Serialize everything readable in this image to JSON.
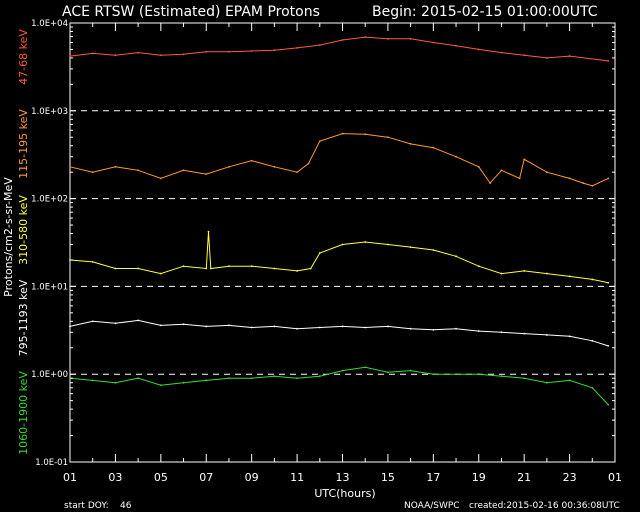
{
  "chart_data": {
    "type": "line",
    "title": "ACE RTSW (Estimated) EPAM Protons",
    "begin": "Begin: 2015-02-15 01:00:00UTC",
    "ylabel": "Protons/cm2-s-sr-MeV",
    "xlabel": "UTC(hours)",
    "yscale": "log",
    "ylim": [
      0.1,
      10000
    ],
    "xlim": [
      1,
      25
    ],
    "ytick_labels": [
      "1.0E-01",
      "1.0E+00",
      "1.0E+01",
      "1.0E+02",
      "1.0E+03",
      "1.0E+04"
    ],
    "xtick_labels": [
      "01",
      "03",
      "05",
      "07",
      "09",
      "11",
      "13",
      "15",
      "17",
      "19",
      "21",
      "23",
      "01"
    ],
    "reference_lines": [
      1,
      10,
      100,
      1000
    ],
    "series": [
      {
        "name": "47-68 keV",
        "color": "#ff5a3c",
        "x": [
          1,
          2,
          3,
          4,
          5,
          6,
          7,
          8,
          9,
          10,
          11,
          12,
          13,
          14,
          15,
          16,
          17,
          18,
          19,
          20,
          21,
          22,
          23,
          24.7
        ],
        "y": [
          4200,
          4500,
          4300,
          4600,
          4300,
          4400,
          4700,
          4700,
          4800,
          4900,
          5200,
          5600,
          6400,
          6900,
          6600,
          6600,
          6000,
          5500,
          5000,
          4600,
          4300,
          4000,
          4200,
          3700
        ]
      },
      {
        "name": "115-195 keV",
        "color": "#ff9a2e",
        "x": [
          1,
          2,
          3,
          4,
          5,
          6,
          7,
          8,
          9,
          10,
          11,
          11.5,
          12,
          13,
          14,
          15,
          16,
          17,
          18,
          19,
          19.5,
          20,
          20.8,
          21,
          22,
          23,
          23.6,
          24,
          24.7
        ],
        "y": [
          230,
          200,
          230,
          210,
          170,
          210,
          190,
          230,
          270,
          230,
          200,
          250,
          450,
          550,
          540,
          500,
          420,
          380,
          300,
          230,
          150,
          210,
          170,
          280,
          200,
          170,
          150,
          140,
          170
        ]
      },
      {
        "name": "310-580 keV",
        "color": "#ffff3c",
        "x": [
          1,
          2,
          3,
          4,
          5,
          6,
          7,
          7.1,
          7.2,
          8,
          9,
          10,
          11,
          11.6,
          12,
          13,
          14,
          15,
          16,
          17,
          18,
          19,
          20,
          21,
          22,
          23,
          24,
          24.7
        ],
        "y": [
          20,
          19,
          16,
          16,
          14,
          17,
          16,
          42,
          16,
          17,
          17,
          16,
          15,
          16,
          24,
          30,
          32,
          30,
          28,
          26,
          22,
          17,
          14,
          15,
          14,
          13,
          12,
          11
        ]
      },
      {
        "name": "795-1193 keV",
        "color": "#ffffff",
        "x": [
          1,
          2,
          3,
          4,
          5,
          6,
          7,
          8,
          9,
          10,
          11,
          12,
          13,
          14,
          15,
          16,
          17,
          18,
          19,
          20,
          21,
          22,
          23,
          24,
          24.7
        ],
        "y": [
          3.5,
          4,
          3.8,
          4.1,
          3.6,
          3.7,
          3.5,
          3.6,
          3.4,
          3.5,
          3.3,
          3.4,
          3.5,
          3.4,
          3.5,
          3.3,
          3.2,
          3.3,
          3.1,
          3.0,
          2.9,
          2.8,
          2.7,
          2.4,
          2.1
        ]
      },
      {
        "name": "1060-1900 keV",
        "color": "#33dd33",
        "x": [
          1,
          2,
          3,
          4,
          5,
          6,
          7,
          8,
          9,
          10,
          11,
          12,
          13,
          14,
          15,
          16,
          17,
          18,
          19,
          20,
          21,
          22,
          23,
          24,
          24.7
        ],
        "y": [
          0.9,
          0.85,
          0.8,
          0.9,
          0.75,
          0.8,
          0.85,
          0.9,
          0.9,
          0.95,
          0.9,
          0.95,
          1.1,
          1.2,
          1.05,
          1.1,
          1.0,
          1.0,
          1.0,
          0.95,
          0.9,
          0.8,
          0.85,
          0.7,
          0.45
        ]
      }
    ]
  },
  "footer": {
    "start_doy_label": "start DOY:",
    "start_doy_value": "46",
    "source": "NOAA/SWPC",
    "created": "created:2015-02-16 00:36:08UTC"
  }
}
